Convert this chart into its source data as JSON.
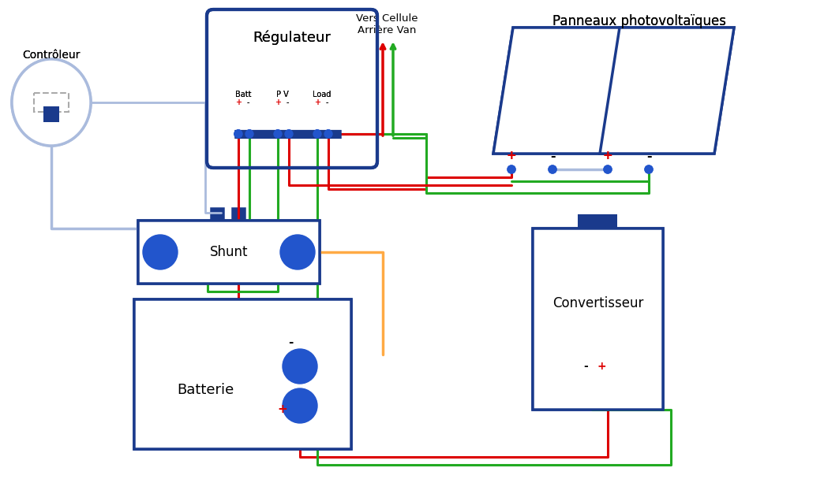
{
  "bg_color": "#f5f5f5",
  "blue_dark": "#1a3a8c",
  "blue_med": "#2255cc",
  "blue_light": "#6699cc",
  "blue_pale": "#aabbdd",
  "red": "#dd0000",
  "green": "#22aa22",
  "orange": "#ffaa44",
  "text_color": "#111111",
  "title_regulateur": "Régulateur",
  "title_controleur": "Contrôleur",
  "title_shunt": "Shunt",
  "title_batterie": "Batterie",
  "title_convertisseur": "Convertisseur",
  "title_panneaux": "Panneaux photovoltaïques",
  "title_vers": "Vers Cellule\nArrière Van"
}
